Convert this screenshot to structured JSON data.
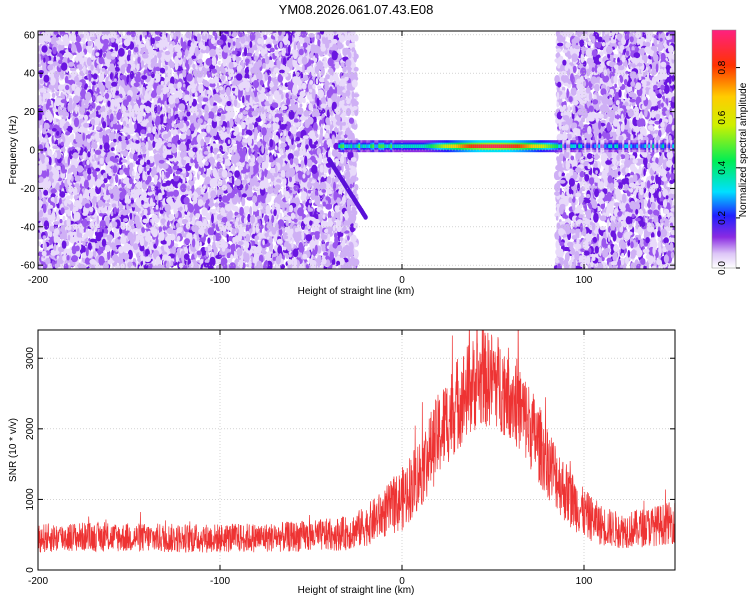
{
  "title": "YM08.2026.061.07.43.E08",
  "chart_data": [
    {
      "type": "heatmap",
      "title": "YM08.2026.061.07.43.E08",
      "xlabel": "Height of straight line (km)",
      "ylabel": "Frequency (Hz)",
      "xlim": [
        -200,
        150
      ],
      "ylim": [
        -62,
        62
      ],
      "xticks": [
        -200,
        -100,
        0,
        100
      ],
      "yticks": [
        -60,
        -40,
        -20,
        0,
        20,
        40,
        60
      ],
      "colorbar": {
        "label": "Normalized spectral amplitude",
        "range": [
          0,
          0.95
        ],
        "ticks": [
          0.0,
          0.2,
          0.4,
          0.6,
          0.8
        ]
      },
      "features": [
        {
          "name": "noise-band-left",
          "x_range": [
            -200,
            -25
          ],
          "freq_range": [
            -62,
            62
          ],
          "amplitude": 0.05
        },
        {
          "name": "noise-band-right",
          "x_range": [
            85,
            150
          ],
          "freq_range": [
            -62,
            62
          ],
          "amplitude": 0.04
        },
        {
          "name": "signal-line",
          "x_range": [
            -35,
            150
          ],
          "freq": 2,
          "peak_amplitude": 0.9,
          "peak_x": 50
        },
        {
          "name": "diagonal-branch",
          "x_start": -40,
          "x_end": -20,
          "freq_start": -5,
          "freq_end": -35,
          "amplitude": 0.12
        }
      ]
    },
    {
      "type": "line",
      "xlabel": "Height of straight line (km)",
      "ylabel": "SNR (10 * v/v)",
      "xlim": [
        -200,
        150
      ],
      "ylim": [
        0,
        3400
      ],
      "xticks": [
        -200,
        -100,
        0,
        100
      ],
      "yticks": [
        0,
        1000,
        2000,
        3000
      ],
      "series": [
        {
          "name": "SNR",
          "color": "#ee3333",
          "x": [
            -200,
            -175,
            -150,
            -125,
            -100,
            -75,
            -50,
            -30,
            -20,
            -10,
            0,
            10,
            20,
            30,
            40,
            50,
            60,
            70,
            80,
            90,
            100,
            110,
            120,
            130,
            140,
            150
          ],
          "values": [
            450,
            470,
            460,
            450,
            450,
            460,
            480,
            520,
            620,
            800,
            1000,
            1380,
            1900,
            2350,
            2650,
            2720,
            2500,
            2050,
            1550,
            1100,
            800,
            630,
            560,
            590,
            630,
            680
          ],
          "noise_amplitude": [
            130,
            130,
            130,
            130,
            130,
            130,
            140,
            150,
            180,
            220,
            280,
            330,
            380,
            420,
            430,
            430,
            420,
            380,
            330,
            280,
            220,
            180,
            160,
            170,
            180,
            190
          ]
        }
      ]
    }
  ]
}
